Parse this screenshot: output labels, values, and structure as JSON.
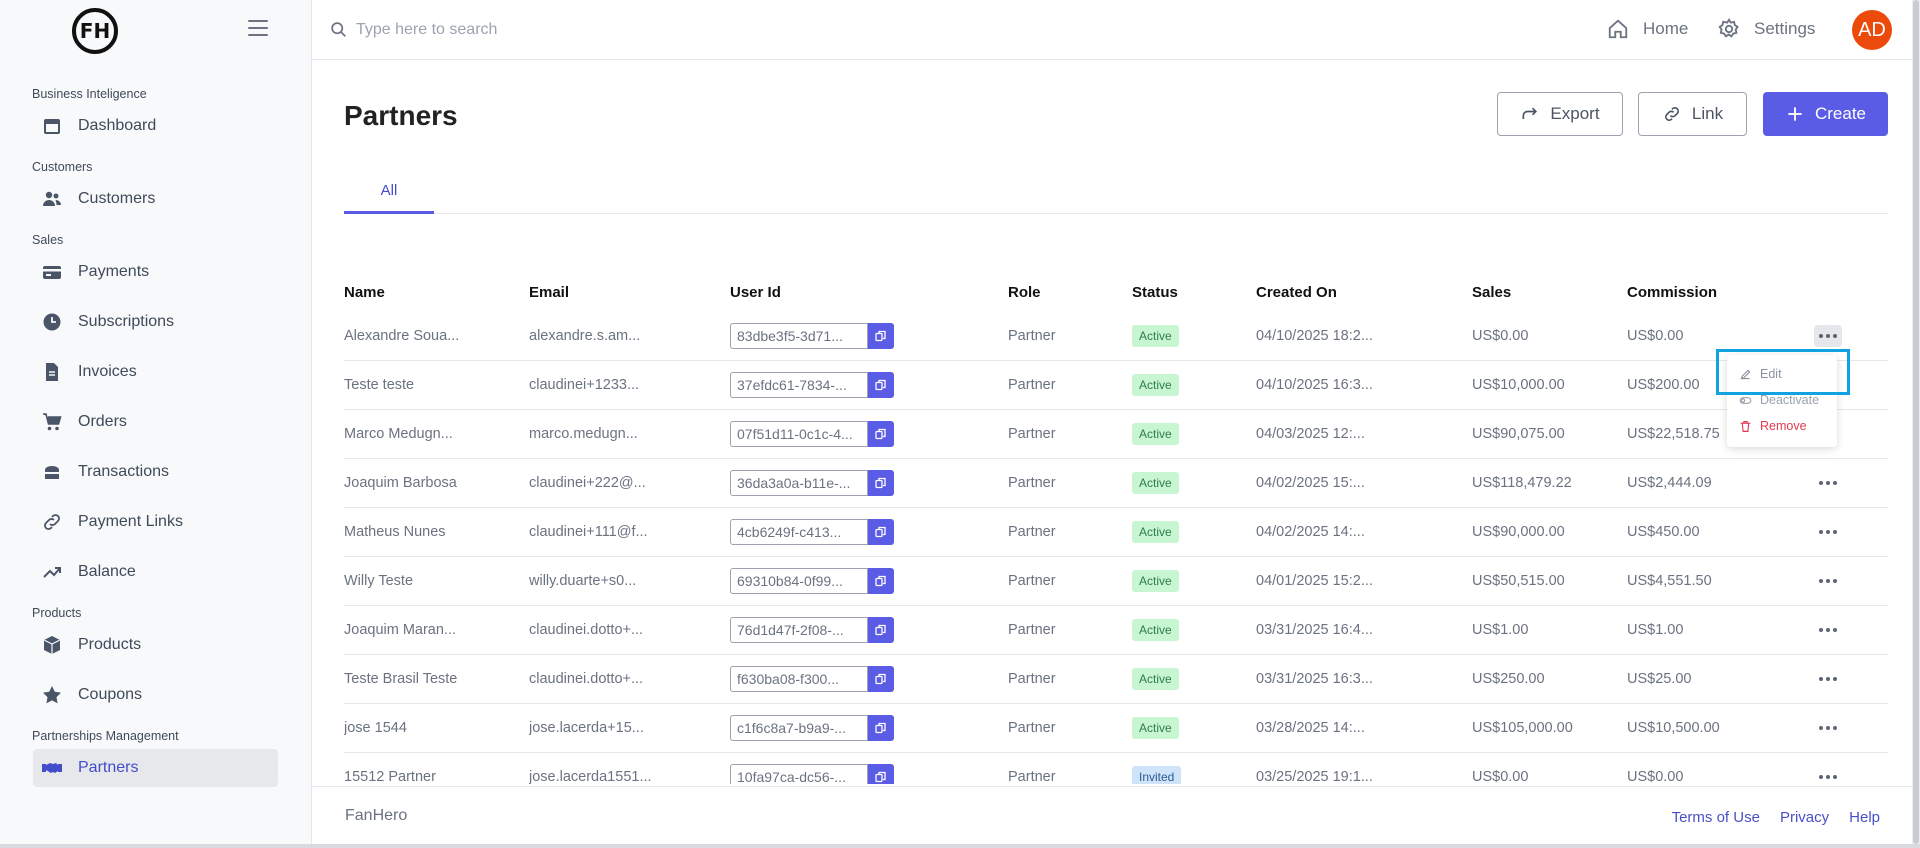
{
  "logo": {
    "text": "FH"
  },
  "sidebar": {
    "sections": [
      {
        "label": "Business Inteligence",
        "items": [
          {
            "label": "Dashboard",
            "icon": "calendar-icon"
          }
        ]
      },
      {
        "label": "Customers",
        "items": [
          {
            "label": "Customers",
            "icon": "users-icon"
          }
        ]
      },
      {
        "label": "Sales",
        "items": [
          {
            "label": "Payments",
            "icon": "credit-card-icon"
          },
          {
            "label": "Subscriptions",
            "icon": "clock-icon"
          },
          {
            "label": "Invoices",
            "icon": "document-icon"
          },
          {
            "label": "Orders",
            "icon": "cart-icon"
          },
          {
            "label": "Transactions",
            "icon": "wallet-icon"
          },
          {
            "label": "Payment Links",
            "icon": "link-icon"
          },
          {
            "label": "Balance",
            "icon": "trend-icon"
          }
        ]
      },
      {
        "label": "Products",
        "items": [
          {
            "label": "Products",
            "icon": "box-icon"
          },
          {
            "label": "Coupons",
            "icon": "star-icon"
          }
        ]
      },
      {
        "label": "Partnerships Management",
        "items": [
          {
            "label": "Partners",
            "icon": "handshake-icon",
            "active": true
          }
        ]
      }
    ]
  },
  "header": {
    "search_placeholder": "Type here to search",
    "home_label": "Home",
    "settings_label": "Settings",
    "avatar_initials": "AD"
  },
  "main": {
    "title": "Partners",
    "export_label": "Export",
    "link_label": "Link",
    "create_label": "Create",
    "tabs": [
      {
        "label": "All"
      }
    ]
  },
  "table": {
    "columns": [
      "Name",
      "Email",
      "User Id",
      "Role",
      "Status",
      "Created On",
      "Sales",
      "Commission"
    ],
    "rows": [
      {
        "name": "Alexandre Soua...",
        "email": "alexandre.s.am...",
        "user_id": "83dbe3f5-3d71...",
        "role": "Partner",
        "status": "Active",
        "created": "04/10/2025 18:2...",
        "sales": "US$0.00",
        "commission": "US$0.00"
      },
      {
        "name": "Teste teste",
        "email": "claudinei+1233...",
        "user_id": "37efdc61-7834-...",
        "role": "Partner",
        "status": "Active",
        "created": "04/10/2025 16:3...",
        "sales": "US$10,000.00",
        "commission": "US$200.00"
      },
      {
        "name": "Marco Medugn...",
        "email": "marco.medugn...",
        "user_id": "07f51d11-0c1c-4...",
        "role": "Partner",
        "status": "Active",
        "created": "04/03/2025 12:...",
        "sales": "US$90,075.00",
        "commission": "US$22,518.75"
      },
      {
        "name": "Joaquim Barbosa",
        "email": "claudinei+222@...",
        "user_id": "36da3a0a-b11e-...",
        "role": "Partner",
        "status": "Active",
        "created": "04/02/2025 15:...",
        "sales": "US$118,479.22",
        "commission": "US$2,444.09"
      },
      {
        "name": "Matheus Nunes",
        "email": "claudinei+111@f...",
        "user_id": "4cb6249f-c413...",
        "role": "Partner",
        "status": "Active",
        "created": "04/02/2025 14:...",
        "sales": "US$90,000.00",
        "commission": "US$450.00"
      },
      {
        "name": "Willy Teste",
        "email": "willy.duarte+s0...",
        "user_id": "69310b84-0f99...",
        "role": "Partner",
        "status": "Active",
        "created": "04/01/2025 15:2...",
        "sales": "US$50,515.00",
        "commission": "US$4,551.50"
      },
      {
        "name": "Joaquim Maran...",
        "email": "claudinei.dotto+...",
        "user_id": "76d1d47f-2f08-...",
        "role": "Partner",
        "status": "Active",
        "created": "03/31/2025 16:4...",
        "sales": "US$1.00",
        "commission": "US$1.00"
      },
      {
        "name": "Teste Brasil Teste",
        "email": "claudinei.dotto+...",
        "user_id": "f630ba08-f300...",
        "role": "Partner",
        "status": "Active",
        "created": "03/31/2025 16:3...",
        "sales": "US$250.00",
        "commission": "US$25.00"
      },
      {
        "name": "jose 1544",
        "email": "jose.lacerda+15...",
        "user_id": "c1f6c8a7-b9a9-...",
        "role": "Partner",
        "status": "Active",
        "created": "03/28/2025 14:...",
        "sales": "US$105,000.00",
        "commission": "US$10,500.00"
      },
      {
        "name": "15512 Partner",
        "email": "jose.lacerda1551...",
        "user_id": "10fa97ca-dc56-...",
        "role": "Partner",
        "status": "Invited",
        "created": "03/25/2025 19:1...",
        "sales": "US$0.00",
        "commission": "US$0.00"
      }
    ]
  },
  "row_menu": {
    "edit": "Edit",
    "deactivate": "Deactivate",
    "remove": "Remove"
  },
  "footer": {
    "brand": "FanHero",
    "links": [
      "Terms of Use",
      "Privacy",
      "Help"
    ]
  },
  "colors": {
    "accent": "#5b5ce6",
    "active_badge": "#c8f5d2",
    "invited_badge": "#cfe3fb",
    "avatar": "#ec4a0a",
    "remove": "#e03a4f",
    "highlight": "#11a3df"
  }
}
